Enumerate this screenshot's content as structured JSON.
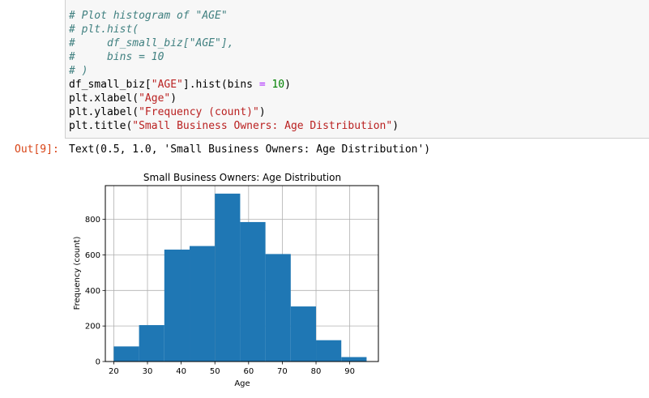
{
  "cell": {
    "lines": [
      [
        {
          "t": "# Plot histogram of \"AGE\"",
          "c": "cm"
        }
      ],
      [
        {
          "t": "# plt.hist(",
          "c": "cm"
        }
      ],
      [
        {
          "t": "#     df_small_biz[\"AGE\"],",
          "c": "cm"
        }
      ],
      [
        {
          "t": "#     bins = 10",
          "c": "cm"
        }
      ],
      [
        {
          "t": "# )",
          "c": "cm"
        }
      ],
      [
        {
          "t": "df_small_biz[",
          "c": ""
        },
        {
          "t": "\"AGE\"",
          "c": "st"
        },
        {
          "t": "].hist(bins ",
          "c": ""
        },
        {
          "t": "=",
          "c": "op"
        },
        {
          "t": " ",
          "c": ""
        },
        {
          "t": "10",
          "c": "nu"
        },
        {
          "t": ")",
          "c": ""
        }
      ],
      [
        {
          "t": "plt.xlabel(",
          "c": ""
        },
        {
          "t": "\"Age\"",
          "c": "st"
        },
        {
          "t": ")",
          "c": ""
        }
      ],
      [
        {
          "t": "plt.ylabel(",
          "c": ""
        },
        {
          "t": "\"Frequency (count)\"",
          "c": "st"
        },
        {
          "t": ")",
          "c": ""
        }
      ],
      [
        {
          "t": "plt.title(",
          "c": ""
        },
        {
          "t": "\"Small Business Owners: Age Distribution\"",
          "c": "st"
        },
        {
          "t": ")",
          "c": ""
        }
      ]
    ]
  },
  "output": {
    "prompt": "Out[9]:",
    "text": "Text(0.5, 1.0, 'Small Business Owners: Age Distribution')"
  },
  "colors": {
    "bar": "#1f77b4",
    "grid": "#b0b0b0",
    "output_prompt": "#d84315",
    "cell_background": "#f7f7f7"
  },
  "chart_data": {
    "type": "bar",
    "title": "Small Business Owners: Age Distribution",
    "xlabel": "Age",
    "ylabel": "Frequency (count)",
    "bins": [
      {
        "start": 20,
        "end": 27.5,
        "value": 85
      },
      {
        "start": 27.5,
        "end": 35,
        "value": 205
      },
      {
        "start": 35,
        "end": 42.5,
        "value": 630
      },
      {
        "start": 42.5,
        "end": 50,
        "value": 650
      },
      {
        "start": 50,
        "end": 57.5,
        "value": 945
      },
      {
        "start": 57.5,
        "end": 65,
        "value": 785
      },
      {
        "start": 65,
        "end": 72.5,
        "value": 605
      },
      {
        "start": 72.5,
        "end": 80,
        "value": 310
      },
      {
        "start": 80,
        "end": 87.5,
        "value": 120
      },
      {
        "start": 87.5,
        "end": 95,
        "value": 25
      }
    ],
    "xlim": [
      17.5,
      98.5
    ],
    "ylim": [
      0,
      990
    ],
    "xticks": [
      "20",
      "30",
      "40",
      "50",
      "60",
      "70",
      "80",
      "90"
    ],
    "yticks": [
      "0",
      "200",
      "400",
      "600",
      "800"
    ],
    "grid": true
  }
}
